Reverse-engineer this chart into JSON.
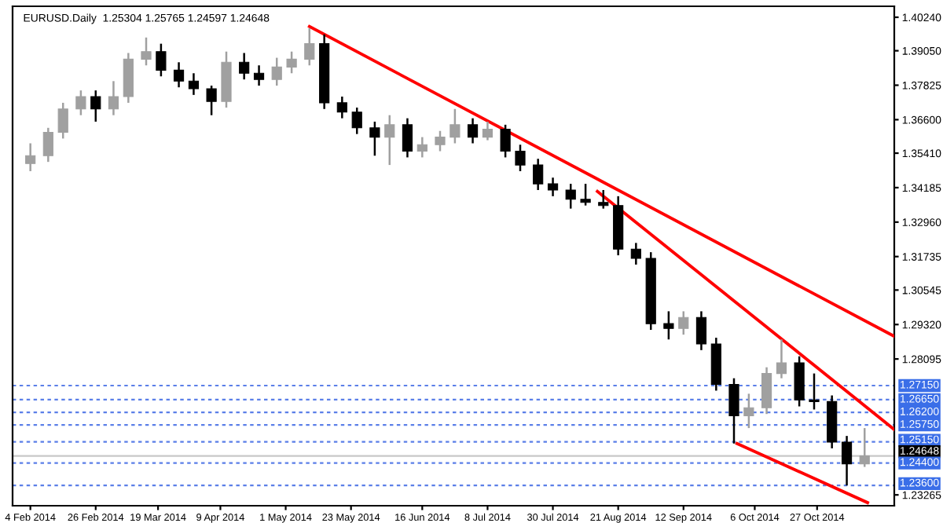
{
  "chart_data": {
    "type": "candlestick",
    "title": "EURUSD.Daily  1.25304 1.25765 1.24597 1.24648",
    "x": [
      "2014-02-04",
      "2014-02-10",
      "2014-02-15",
      "2014-02-21",
      "2014-02-26",
      "2014-03-04",
      "2014-03-09",
      "2014-03-15",
      "2014-03-20",
      "2014-03-26",
      "2014-03-31",
      "2014-04-06",
      "2014-04-11",
      "2014-04-17",
      "2014-04-22",
      "2014-04-28",
      "2014-05-03",
      "2014-05-09",
      "2014-05-14",
      "2014-05-20",
      "2014-05-25",
      "2014-05-31",
      "2014-06-05",
      "2014-06-11",
      "2014-06-16",
      "2014-06-22",
      "2014-06-27",
      "2014-07-03",
      "2014-07-08",
      "2014-07-14",
      "2014-07-19",
      "2014-07-25",
      "2014-07-30",
      "2014-08-05",
      "2014-08-10",
      "2014-08-16",
      "2014-08-21",
      "2014-08-27",
      "2014-09-01",
      "2014-09-07",
      "2014-09-12",
      "2014-09-18",
      "2014-09-23",
      "2014-09-29",
      "2014-10-04",
      "2014-10-10",
      "2014-10-15",
      "2014-10-21",
      "2014-10-26",
      "2014-11-01",
      "2014-11-06",
      "2014-11-12"
    ],
    "ohlc": [
      [
        1.3504,
        1.3576,
        1.3477,
        1.3532
      ],
      [
        1.3532,
        1.3631,
        1.351,
        1.3615
      ],
      [
        1.3615,
        1.372,
        1.3593,
        1.3698
      ],
      [
        1.3698,
        1.3764,
        1.3676,
        1.3742
      ],
      [
        1.3742,
        1.3764,
        1.3653,
        1.3698
      ],
      [
        1.3698,
        1.3797,
        1.3676,
        1.3742
      ],
      [
        1.3742,
        1.3897,
        1.372,
        1.3875
      ],
      [
        1.3875,
        1.3952,
        1.3853,
        1.3902
      ],
      [
        1.3902,
        1.393,
        1.3814,
        1.3836
      ],
      [
        1.3836,
        1.3864,
        1.3775,
        1.3797
      ],
      [
        1.3797,
        1.3825,
        1.3748,
        1.377
      ],
      [
        1.377,
        1.3781,
        1.3676,
        1.3725
      ],
      [
        1.3725,
        1.3902,
        1.3703,
        1.3864
      ],
      [
        1.3864,
        1.3897,
        1.3803,
        1.3825
      ],
      [
        1.3825,
        1.3853,
        1.3781,
        1.3803
      ],
      [
        1.3803,
        1.388,
        1.3781,
        1.3847
      ],
      [
        1.3847,
        1.3902,
        1.3825,
        1.3875
      ],
      [
        1.3875,
        1.3985,
        1.3853,
        1.393
      ],
      [
        1.393,
        1.3963,
        1.3698,
        1.372
      ],
      [
        1.372,
        1.3742,
        1.3665,
        1.3687
      ],
      [
        1.3687,
        1.3703,
        1.3609,
        1.3631
      ],
      [
        1.3631,
        1.3653,
        1.3532,
        1.3598
      ],
      [
        1.3598,
        1.3676,
        1.3499,
        1.3642
      ],
      [
        1.3642,
        1.3665,
        1.3526,
        1.3548
      ],
      [
        1.3548,
        1.3598,
        1.3526,
        1.3571
      ],
      [
        1.3571,
        1.362,
        1.3548,
        1.3598
      ],
      [
        1.3598,
        1.3698,
        1.3576,
        1.3642
      ],
      [
        1.3642,
        1.3665,
        1.3576,
        1.3598
      ],
      [
        1.3598,
        1.3653,
        1.3587,
        1.3626
      ],
      [
        1.3626,
        1.3642,
        1.3526,
        1.3548
      ],
      [
        1.3548,
        1.3571,
        1.3477,
        1.3499
      ],
      [
        1.3499,
        1.3521,
        1.341,
        1.3432
      ],
      [
        1.3432,
        1.3454,
        1.3388,
        1.341
      ],
      [
        1.341,
        1.3432,
        1.3344,
        1.3377
      ],
      [
        1.3377,
        1.3432,
        1.3355,
        1.3366
      ],
      [
        1.3366,
        1.341,
        1.3344,
        1.3355
      ],
      [
        1.3355,
        1.3388,
        1.3178,
        1.32
      ],
      [
        1.32,
        1.3222,
        1.3145,
        1.3167
      ],
      [
        1.3167,
        1.3189,
        1.2913,
        1.2935
      ],
      [
        1.2935,
        1.2979,
        1.2879,
        1.2918
      ],
      [
        1.2918,
        1.2979,
        1.2896,
        1.2957
      ],
      [
        1.2957,
        1.2979,
        1.2841,
        1.2863
      ],
      [
        1.2863,
        1.2885,
        1.2697,
        1.2719
      ],
      [
        1.2719,
        1.2741,
        1.2509,
        1.2608
      ],
      [
        1.2608,
        1.2686,
        1.2564,
        1.2636
      ],
      [
        1.2636,
        1.278,
        1.2614,
        1.2758
      ],
      [
        1.2758,
        1.2879,
        1.2741,
        1.2796
      ],
      [
        1.2796,
        1.2819,
        1.2641,
        1.2664
      ],
      [
        1.2664,
        1.2758,
        1.263,
        1.2658
      ],
      [
        1.2658,
        1.268,
        1.2492,
        1.2514
      ],
      [
        1.2514,
        1.2536,
        1.236,
        1.2437
      ],
      [
        1.2437,
        1.2564,
        1.2426,
        1.2465
      ]
    ],
    "colors": [
      "#a0a0a0",
      "#a0a0a0",
      "#a0a0a0",
      "#a0a0a0",
      "#000000",
      "#a0a0a0",
      "#a0a0a0",
      "#a0a0a0",
      "#000000",
      "#000000",
      "#000000",
      "#000000",
      "#a0a0a0",
      "#000000",
      "#000000",
      "#a0a0a0",
      "#a0a0a0",
      "#a0a0a0",
      "#000000",
      "#000000",
      "#000000",
      "#000000",
      "#a0a0a0",
      "#000000",
      "#a0a0a0",
      "#a0a0a0",
      "#a0a0a0",
      "#000000",
      "#a0a0a0",
      "#000000",
      "#000000",
      "#000000",
      "#000000",
      "#000000",
      "#000000",
      "#000000",
      "#000000",
      "#000000",
      "#000000",
      "#000000",
      "#a0a0a0",
      "#000000",
      "#000000",
      "#000000",
      "#a0a0a0",
      "#a0a0a0",
      "#a0a0a0",
      "#000000",
      "#000000",
      "#000000",
      "#000000",
      "#a0a0a0"
    ],
    "series": [
      {
        "type": "line",
        "color": "#ff0000",
        "x": [
          "2014-05-09",
          "2014-11-22"
        ],
        "values": [
          1.3991,
          1.289
        ]
      },
      {
        "type": "line",
        "color": "#ff0000",
        "x": [
          "2014-08-14",
          "2014-11-22"
        ],
        "values": [
          1.3405,
          1.2559
        ]
      },
      {
        "type": "line",
        "color": "#ff0000",
        "x": [
          "2014-09-30",
          "2014-11-13"
        ],
        "values": [
          1.2509,
          1.2299
        ]
      }
    ],
    "xlim": [
      "2014-01-29",
      "2014-11-22"
    ],
    "xticks": [
      {
        "value": "2014-02-04",
        "label": "4 Feb 2014"
      },
      {
        "value": "2014-02-26",
        "label": "26 Feb 2014"
      },
      {
        "value": "2014-03-19",
        "label": "19 Mar 2014"
      },
      {
        "value": "2014-04-09",
        "label": "9 Apr 2014"
      },
      {
        "value": "2014-05-01",
        "label": "1 May 2014"
      },
      {
        "value": "2014-05-23",
        "label": "23 May 2014"
      },
      {
        "value": "2014-06-16",
        "label": "16 Jun 2014"
      },
      {
        "value": "2014-07-08",
        "label": "8 Jul 2014"
      },
      {
        "value": "2014-07-30",
        "label": "30 Jul 2014"
      },
      {
        "value": "2014-08-21",
        "label": "21 Aug 2014"
      },
      {
        "value": "2014-09-12",
        "label": "12 Sep 2014"
      },
      {
        "value": "2014-10-06",
        "label": "6 Oct 2014"
      },
      {
        "value": "2014-10-27",
        "label": "27 Oct 2014"
      }
    ],
    "ylim": [
      1.2288,
      1.4063
    ],
    "yticks": [
      {
        "value": 1.4024,
        "label": "1.40240"
      },
      {
        "value": 1.3905,
        "label": "1.39050"
      },
      {
        "value": 1.37825,
        "label": "1.37825"
      },
      {
        "value": 1.366,
        "label": "1.36600"
      },
      {
        "value": 1.3541,
        "label": "1.35410"
      },
      {
        "value": 1.34185,
        "label": "1.34185"
      },
      {
        "value": 1.3296,
        "label": "1.32960"
      },
      {
        "value": 1.31735,
        "label": "1.31735"
      },
      {
        "value": 1.30545,
        "label": "1.30545"
      },
      {
        "value": 1.2932,
        "label": "1.29320"
      },
      {
        "value": 1.28095,
        "label": "1.28095"
      },
      {
        "value": 1.23265,
        "label": "1.23265"
      }
    ],
    "ref_lines": [
      {
        "axis": "y",
        "value": 1.2715,
        "label": "1.27150",
        "color": "#5b7fe8",
        "line_style": "dashed"
      },
      {
        "axis": "y",
        "value": 1.2665,
        "label": "1.26650",
        "color": "#5b7fe8",
        "line_style": "dashed"
      },
      {
        "axis": "y",
        "value": 1.262,
        "label": "1.26200",
        "color": "#5b7fe8",
        "line_style": "dashed"
      },
      {
        "axis": "y",
        "value": 1.2575,
        "label": "1.25750",
        "color": "#5b7fe8",
        "line_style": "dashed"
      },
      {
        "axis": "y",
        "value": 1.2515,
        "label": "1.25150",
        "color": "#5b7fe8",
        "line_style": "dashed"
      },
      {
        "axis": "y",
        "value": 1.24648,
        "label": "1.24648",
        "color": "#c8c8c8",
        "line_style": "solid"
      },
      {
        "axis": "y",
        "value": 1.244,
        "label": "1.24400",
        "color": "#5b7fe8",
        "line_style": "dashed"
      },
      {
        "axis": "y",
        "value": 1.236,
        "label": "1.23600",
        "color": "#5b7fe8",
        "line_style": "dashed"
      }
    ],
    "grid": false,
    "legend": false
  }
}
